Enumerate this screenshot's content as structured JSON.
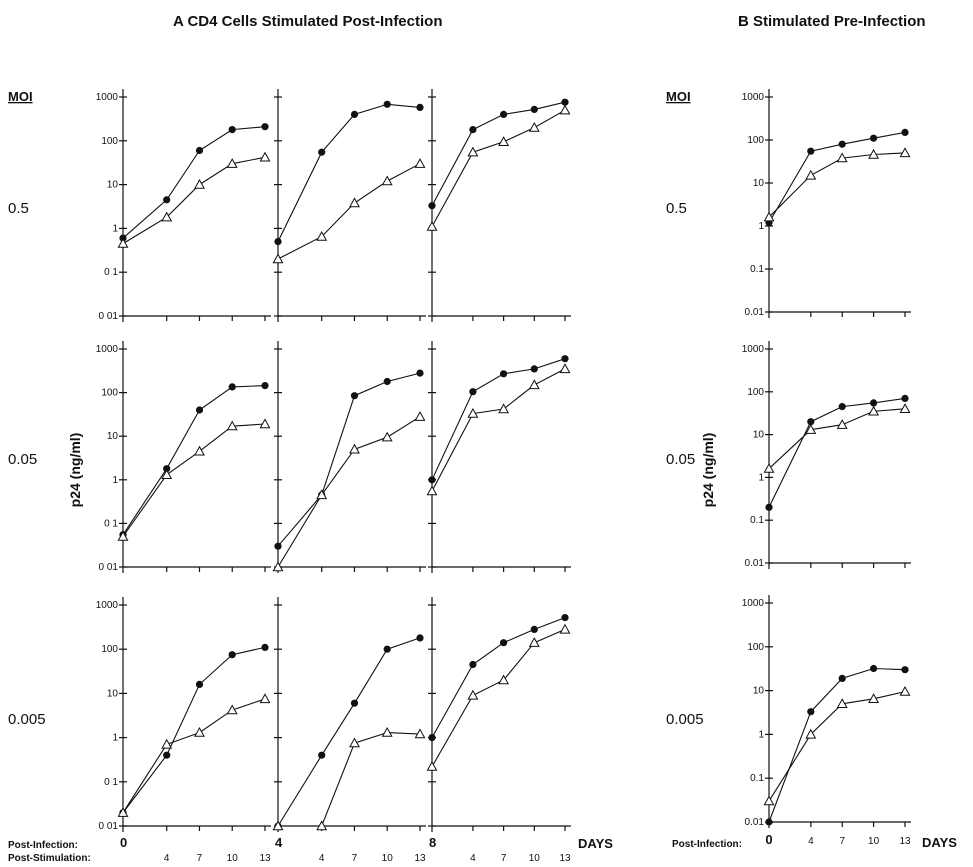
{
  "figure": {
    "panel_a_title": "A  CD4 Cells Stimulated Post-Infection",
    "panel_b_title": "B   Stimulated Pre-Infection",
    "moi_header": "MOI",
    "ylabel": "p24 (ng/ml)",
    "days_label": "DAYS",
    "post_infection_label": "Post-Infection:",
    "post_stimulation_label": "Post-Stimulation:",
    "row_labels": [
      "0.5",
      "0.05",
      "0.005"
    ],
    "ytick_labels": [
      "1000",
      "100",
      "10",
      "1",
      "0.1",
      "0.01"
    ],
    "panel_a_ytick_labels": [
      "1000",
      "100",
      "10",
      "1",
      "0 1",
      "0 01"
    ],
    "panel_a_post_infection_ticks": [
      "0",
      "4",
      "8"
    ],
    "panel_a_post_stimulation_ticks": [
      "4",
      "7",
      "10",
      "13"
    ],
    "panel_b_post_infection_ticks": [
      "0",
      "4",
      "7",
      "10",
      "13"
    ]
  },
  "chart_data": [
    {
      "type": "line",
      "panel": "A",
      "moi": "0.5",
      "stimulation_day": 0,
      "x": [
        0,
        4,
        7,
        10,
        13
      ],
      "xlabel": "",
      "ylabel": "p24 (ng/ml)",
      "yscale": "log",
      "ylim": [
        0.01,
        1000
      ],
      "series": [
        {
          "marker": "filled-circle",
          "values": [
            0.6,
            4.5,
            60,
            180,
            210
          ]
        },
        {
          "marker": "open-triangle",
          "values": [
            0.45,
            1.8,
            10,
            30,
            42
          ]
        }
      ]
    },
    {
      "type": "line",
      "panel": "A",
      "moi": "0.5",
      "stimulation_day": 4,
      "x": [
        0,
        4,
        7,
        10,
        13
      ],
      "xlabel": "",
      "ylabel": "p24 (ng/ml)",
      "yscale": "log",
      "ylim": [
        0.01,
        1000
      ],
      "series": [
        {
          "marker": "filled-circle",
          "values": [
            0.5,
            55,
            400,
            680,
            580
          ]
        },
        {
          "marker": "open-triangle",
          "values": [
            0.2,
            0.65,
            3.8,
            12,
            30
          ]
        }
      ]
    },
    {
      "type": "line",
      "panel": "A",
      "moi": "0.5",
      "stimulation_day": 8,
      "x": [
        0,
        4,
        7,
        10,
        13
      ],
      "xlabel": "",
      "ylabel": "p24 (ng/ml)",
      "yscale": "log",
      "ylim": [
        0.01,
        1000
      ],
      "series": [
        {
          "marker": "filled-circle",
          "values": [
            3.3,
            180,
            400,
            520,
            760
          ]
        },
        {
          "marker": "open-triangle",
          "values": [
            1.1,
            55,
            95,
            200,
            500
          ]
        }
      ]
    },
    {
      "type": "line",
      "panel": "A",
      "moi": "0.05",
      "stimulation_day": 0,
      "x": [
        0,
        4,
        7,
        10,
        13
      ],
      "xlabel": "",
      "ylabel": "p24 (ng/ml)",
      "yscale": "log",
      "ylim": [
        0.01,
        1000
      ],
      "series": [
        {
          "marker": "filled-circle",
          "values": [
            0.055,
            1.8,
            40,
            135,
            145
          ]
        },
        {
          "marker": "open-triangle",
          "values": [
            0.05,
            1.3,
            4.5,
            17,
            19
          ]
        }
      ]
    },
    {
      "type": "line",
      "panel": "A",
      "moi": "0.05",
      "stimulation_day": 4,
      "x": [
        0,
        4,
        7,
        10,
        13
      ],
      "xlabel": "",
      "ylabel": "p24 (ng/ml)",
      "yscale": "log",
      "ylim": [
        0.01,
        1000
      ],
      "series": [
        {
          "marker": "filled-circle",
          "values": [
            0.03,
            0.45,
            85,
            180,
            280
          ]
        },
        {
          "marker": "open-triangle",
          "values": [
            0.01,
            0.45,
            5,
            9.5,
            28
          ]
        }
      ]
    },
    {
      "type": "line",
      "panel": "A",
      "moi": "0.05",
      "stimulation_day": 8,
      "x": [
        0,
        4,
        7,
        10,
        13
      ],
      "xlabel": "",
      "ylabel": "p24 (ng/ml)",
      "yscale": "log",
      "ylim": [
        0.01,
        1000
      ],
      "series": [
        {
          "marker": "filled-circle",
          "values": [
            1,
            105,
            270,
            350,
            600
          ]
        },
        {
          "marker": "open-triangle",
          "values": [
            0.55,
            33,
            42,
            150,
            350
          ]
        }
      ]
    },
    {
      "type": "line",
      "panel": "A",
      "moi": "0.005",
      "stimulation_day": 0,
      "x": [
        0,
        4,
        7,
        10,
        13
      ],
      "xlabel": "",
      "ylabel": "p24 (ng/ml)",
      "yscale": "log",
      "ylim": [
        0.01,
        1000
      ],
      "series": [
        {
          "marker": "filled-circle",
          "values": [
            0.02,
            0.4,
            16,
            75,
            110
          ]
        },
        {
          "marker": "open-triangle",
          "values": [
            0.02,
            0.7,
            1.3,
            4.2,
            7.5
          ]
        }
      ]
    },
    {
      "type": "line",
      "panel": "A",
      "moi": "0.005",
      "stimulation_day": 4,
      "x": [
        0,
        4,
        7,
        10,
        13
      ],
      "xlabel": "",
      "ylabel": "p24 (ng/ml)",
      "yscale": "log",
      "ylim": [
        0.01,
        1000
      ],
      "series": [
        {
          "marker": "filled-circle",
          "values": [
            0.01,
            0.4,
            6,
            100,
            180
          ]
        },
        {
          "marker": "open-triangle",
          "values": [
            0.01,
            0.01,
            0.75,
            1.3,
            1.2
          ]
        }
      ]
    },
    {
      "type": "line",
      "panel": "A",
      "moi": "0.005",
      "stimulation_day": 8,
      "x": [
        0,
        4,
        7,
        10,
        13
      ],
      "xlabel": "",
      "ylabel": "p24 (ng/ml)",
      "yscale": "log",
      "ylim": [
        0.01,
        1000
      ],
      "series": [
        {
          "marker": "filled-circle",
          "values": [
            1,
            45,
            140,
            280,
            520
          ]
        },
        {
          "marker": "open-triangle",
          "values": [
            0.22,
            9,
            20,
            140,
            280
          ]
        }
      ]
    },
    {
      "type": "line",
      "panel": "B",
      "moi": "0.5",
      "x": [
        0,
        4,
        7,
        10,
        13
      ],
      "xlabel": "Post-Infection:",
      "ylabel": "p24 (ng/ml)",
      "yscale": "log",
      "ylim": [
        0.01,
        1000
      ],
      "series": [
        {
          "marker": "filled-circle",
          "values": [
            1.2,
            55,
            80,
            110,
            150
          ]
        },
        {
          "marker": "open-triangle",
          "values": [
            1.6,
            15,
            38,
            46,
            50
          ]
        }
      ]
    },
    {
      "type": "line",
      "panel": "B",
      "moi": "0.05",
      "x": [
        0,
        4,
        7,
        10,
        13
      ],
      "xlabel": "Post-Infection:",
      "ylabel": "p24 (ng/ml)",
      "yscale": "log",
      "ylim": [
        0.01,
        1000
      ],
      "series": [
        {
          "marker": "filled-circle",
          "values": [
            0.2,
            20,
            45,
            55,
            70
          ]
        },
        {
          "marker": "open-triangle",
          "values": [
            1.6,
            13,
            17,
            35,
            40
          ]
        }
      ]
    },
    {
      "type": "line",
      "panel": "B",
      "moi": "0.005",
      "x": [
        0,
        4,
        7,
        10,
        13
      ],
      "xlabel": "Post-Infection:",
      "ylabel": "p24 (ng/ml)",
      "yscale": "log",
      "ylim": [
        0.01,
        1000
      ],
      "series": [
        {
          "marker": "filled-circle",
          "values": [
            0.01,
            3.3,
            19,
            32,
            30
          ]
        },
        {
          "marker": "open-triangle",
          "values": [
            0.03,
            1,
            5,
            6.5,
            9.5
          ]
        }
      ]
    }
  ]
}
